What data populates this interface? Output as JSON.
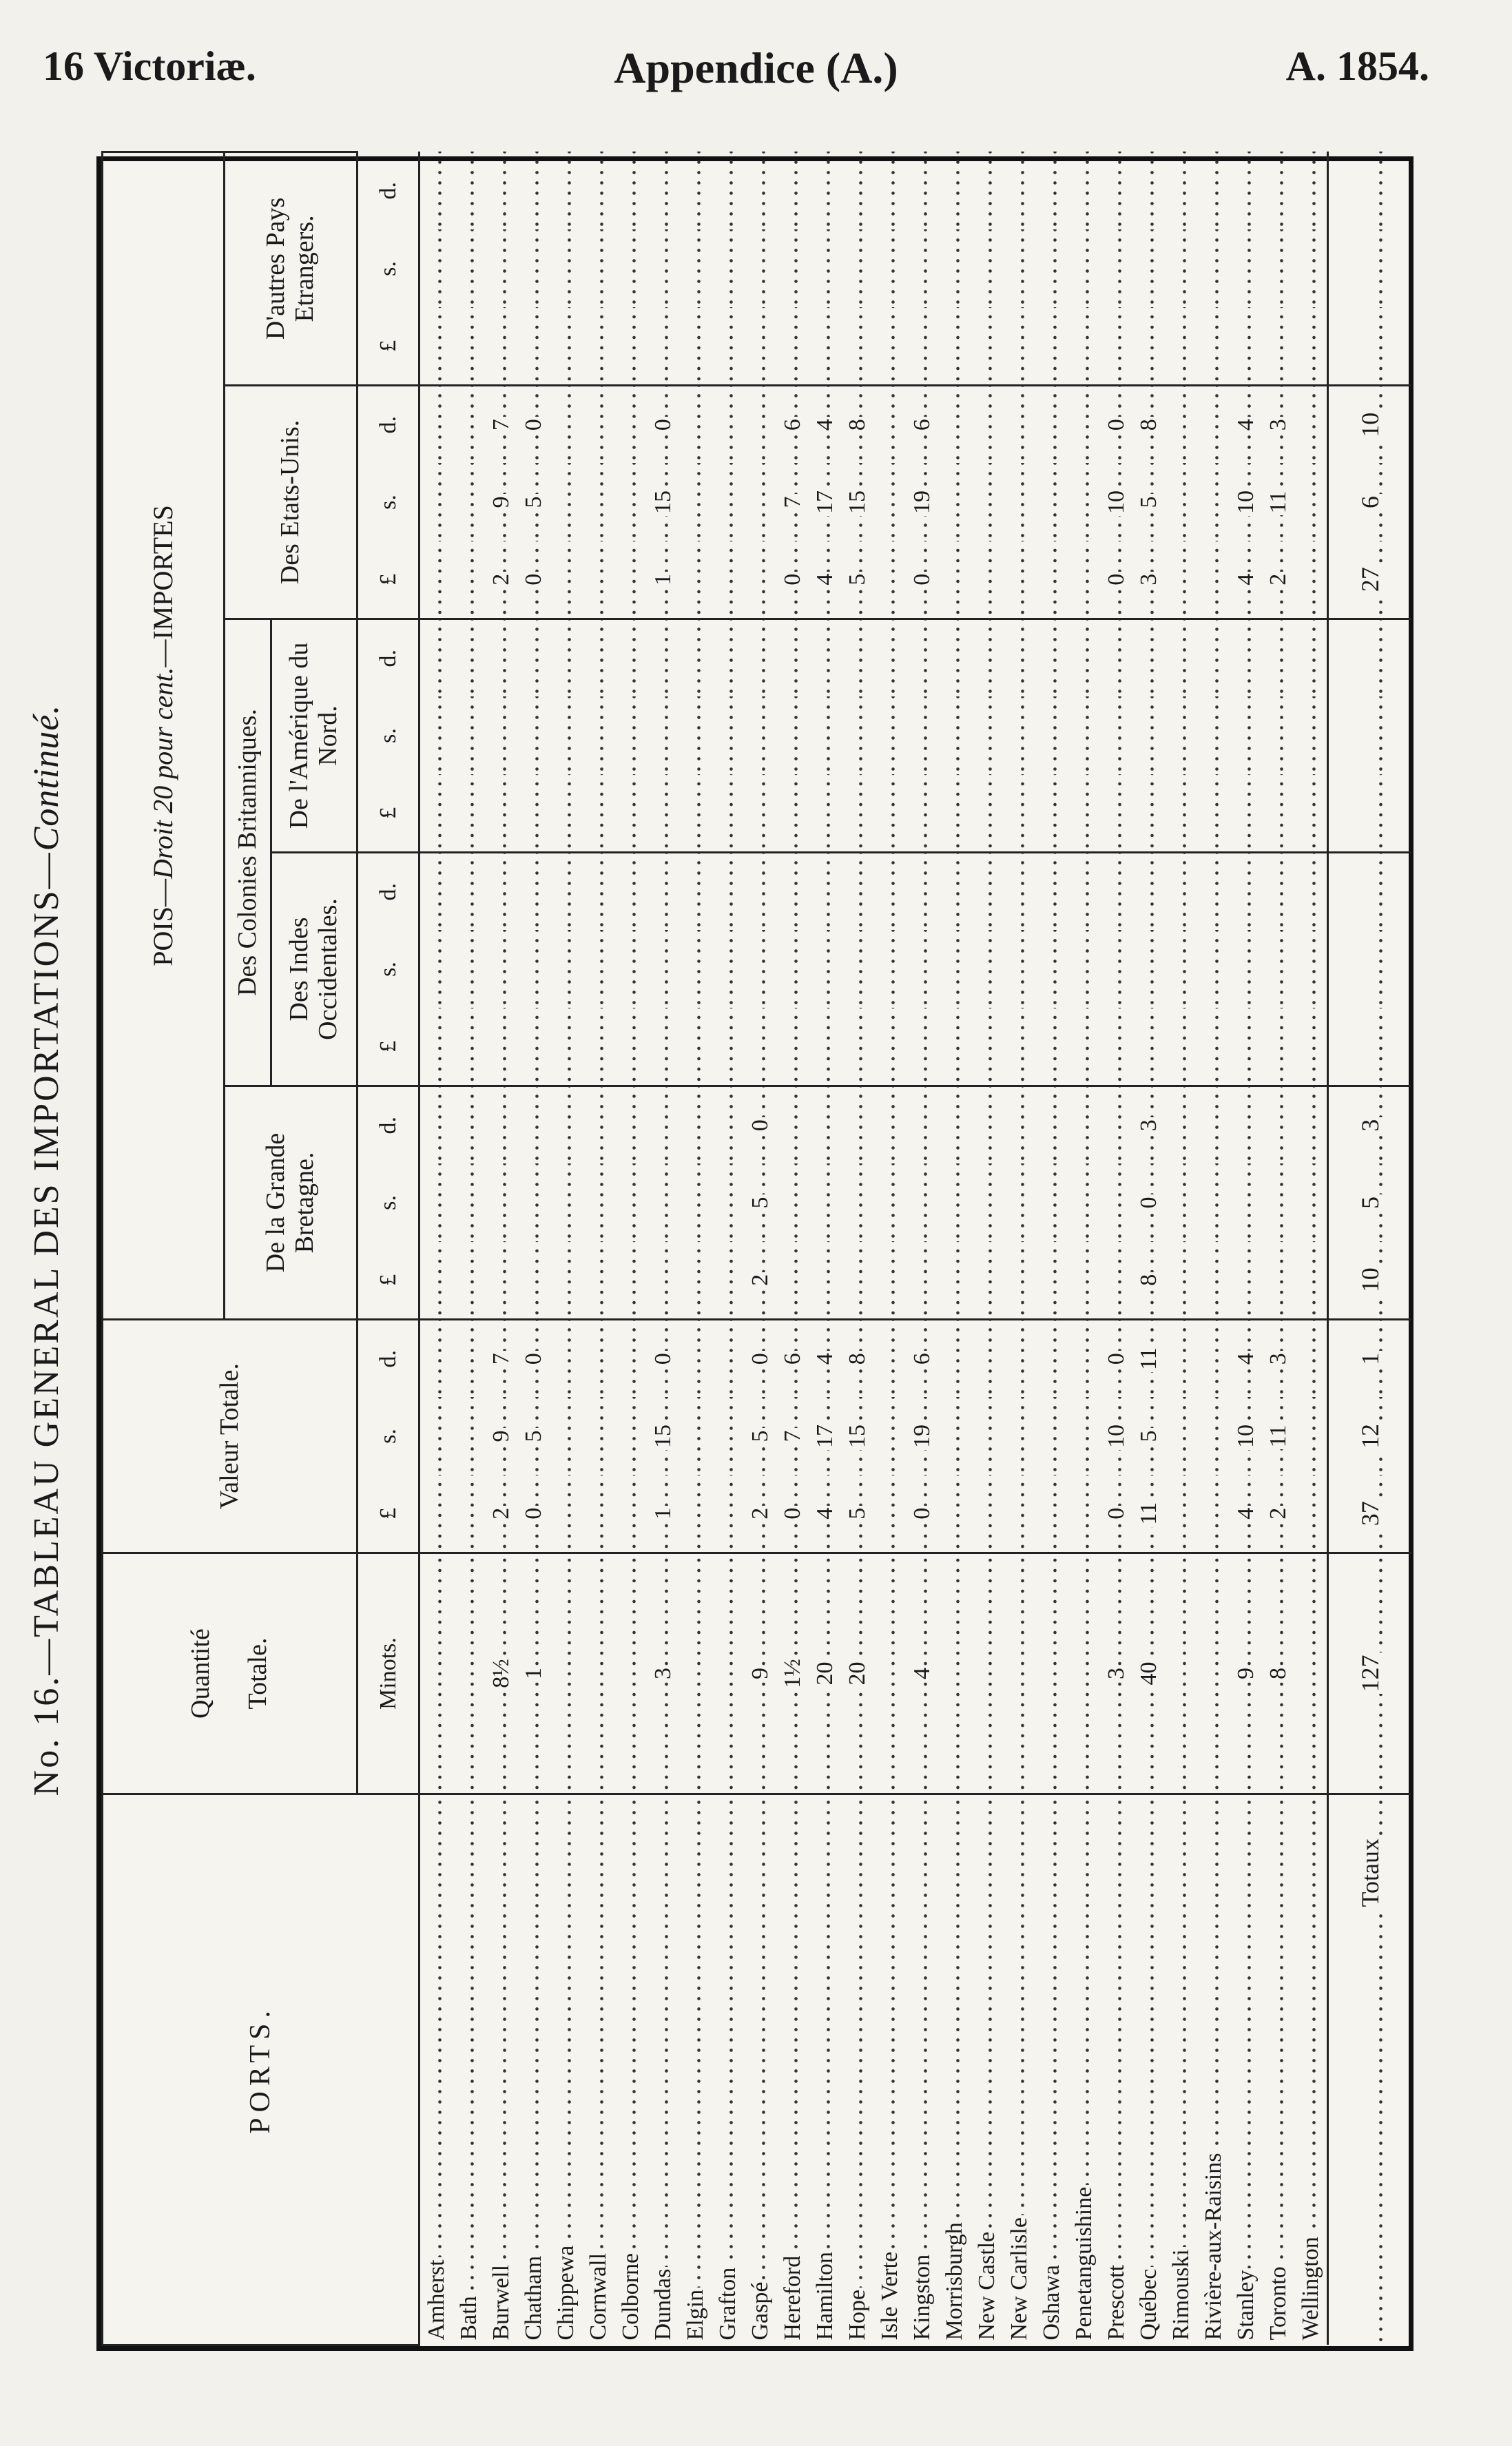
{
  "header": {
    "left": "16 Victoriæ.",
    "center": "Appendice (A.)",
    "right": "A. 1854."
  },
  "title": "No. 16.—TABLEAU GENERAL DES IMPORTATIONS—",
  "title_suffix": "Continué.",
  "table": {
    "headers": {
      "ports": "PORTS.",
      "quantity": "Quantité",
      "quantity_sub": "Totale.",
      "unit_minots": "Minots.",
      "value": "Valeur Totale.",
      "group": "POIS—",
      "group_italic": "Droit 20 pour cent.",
      "group_end": "—IMPORTES",
      "gb": "De la Grande Bretagne.",
      "colonies": "Des Colonies Britanniques.",
      "west_indies": "Des Indes Occidentales.",
      "north_america": "De l'Amérique du Nord.",
      "us": "Des Etats-Unis.",
      "other": "D'autres Pays Etrangers.",
      "money_units": [
        "£",
        "s.",
        "d."
      ]
    },
    "rows": [
      {
        "port": "Amherst"
      },
      {
        "port": "Bath"
      },
      {
        "port": "Burwell",
        "quantity": "8½",
        "total_value": [
          2,
          9,
          7
        ],
        "us": [
          2,
          9,
          7
        ]
      },
      {
        "port": "Chatham",
        "quantity": 1,
        "total_value": [
          0,
          5,
          0
        ],
        "us": [
          0,
          5,
          0
        ]
      },
      {
        "port": "Chippewa"
      },
      {
        "port": "Cornwall"
      },
      {
        "port": "Colborne"
      },
      {
        "port": "Dundas",
        "quantity": 3,
        "total_value": [
          1,
          15,
          0
        ],
        "us": [
          1,
          15,
          0
        ]
      },
      {
        "port": "Elgin"
      },
      {
        "port": "Grafton"
      },
      {
        "port": "Gaspé",
        "quantity": 9,
        "total_value": [
          2,
          5,
          0
        ],
        "gb": [
          2,
          5,
          0
        ]
      },
      {
        "port": "Hereford",
        "quantity": "1½",
        "total_value": [
          0,
          7,
          6
        ],
        "us": [
          0,
          7,
          6
        ]
      },
      {
        "port": "Hamilton",
        "quantity": 20,
        "total_value": [
          4,
          17,
          4
        ],
        "us": [
          4,
          17,
          4
        ]
      },
      {
        "port": "Hope",
        "quantity": 20,
        "total_value": [
          5,
          15,
          8
        ],
        "us": [
          5,
          15,
          8
        ]
      },
      {
        "port": "Isle Verte"
      },
      {
        "port": "Kingston",
        "quantity": 4,
        "total_value": [
          0,
          19,
          6
        ],
        "us": [
          0,
          19,
          6
        ]
      },
      {
        "port": "Morrisburgh"
      },
      {
        "port": "New Castle"
      },
      {
        "port": "New Carlisle"
      },
      {
        "port": "Oshawa"
      },
      {
        "port": "Penetanguishine"
      },
      {
        "port": "Prescott",
        "quantity": 3,
        "total_value": [
          0,
          10,
          0
        ],
        "us": [
          0,
          10,
          0
        ]
      },
      {
        "port": "Québec",
        "quantity": 40,
        "total_value": [
          11,
          5,
          11
        ],
        "gb": [
          8,
          0,
          3
        ],
        "us": [
          3,
          5,
          8
        ]
      },
      {
        "port": "Rimouski"
      },
      {
        "port": "Rivière-aux-Raisins"
      },
      {
        "port": "Stanley",
        "quantity": 9,
        "total_value": [
          4,
          10,
          4
        ],
        "us": [
          4,
          10,
          4
        ]
      },
      {
        "port": "Toronto",
        "quantity": 8,
        "total_value": [
          2,
          11,
          3
        ],
        "us": [
          2,
          11,
          3
        ]
      },
      {
        "port": "Wellington"
      }
    ],
    "totals": {
      "port": "Totaux",
      "quantity": 127,
      "total_value": [
        37,
        12,
        1
      ],
      "gb": [
        10,
        5,
        3
      ],
      "us": [
        27,
        6,
        10
      ]
    }
  }
}
